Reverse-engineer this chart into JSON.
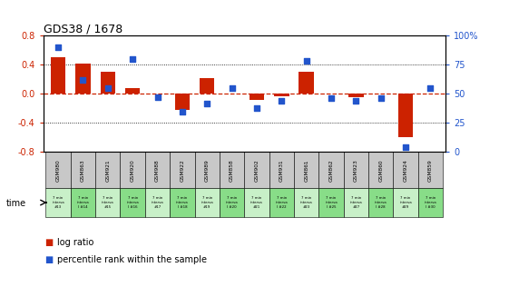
{
  "title": "GDS38 / 1678",
  "samples": [
    "GSM980",
    "GSM863",
    "GSM921",
    "GSM920",
    "GSM988",
    "GSM922",
    "GSM989",
    "GSM858",
    "GSM902",
    "GSM931",
    "GSM861",
    "GSM862",
    "GSM923",
    "GSM860",
    "GSM924",
    "GSM859"
  ],
  "time_labels": [
    "7 min\ninterva\n#13",
    "7 min\ninterva\nl #14",
    "7 min\ninterva\n#15",
    "7 min\ninterva\nl #16",
    "7 min\ninterva\n#17",
    "7 min\ninterva\nl #18",
    "7 min\ninterva\n#19",
    "7 min\ninterva\nl #20",
    "7 min\ninterva\n#21",
    "7 min\ninterva\nl #22",
    "7 min\ninterva\n#23",
    "7 min\ninterva\nl #25",
    "7 min\ninterva\n#27",
    "7 min\ninterva\nl #28",
    "7 min\ninterva\n#29",
    "7 min\ninterva\nl #30"
  ],
  "log_ratio": [
    0.5,
    0.42,
    0.3,
    0.08,
    0.0,
    -0.22,
    0.22,
    0.0,
    -0.08,
    -0.03,
    0.3,
    0.0,
    -0.04,
    0.0,
    -0.6,
    0.01
  ],
  "percentile": [
    90,
    62,
    55,
    80,
    47,
    35,
    42,
    55,
    38,
    44,
    78,
    46,
    44,
    46,
    4,
    55
  ],
  "ylim_left": [
    -0.8,
    0.8
  ],
  "ylim_right": [
    0,
    100
  ],
  "yticks_left": [
    -0.8,
    -0.4,
    0.0,
    0.4,
    0.8
  ],
  "yticks_right": [
    0,
    25,
    50,
    75,
    100
  ],
  "bar_color": "#cc2200",
  "dot_color": "#2255cc",
  "background_color": "#ffffff",
  "zero_line_color": "#cc2200",
  "sample_box_color": "#c8c8c8",
  "time_box_color_light": "#c8f0c8",
  "time_box_color_dark": "#88dd88"
}
